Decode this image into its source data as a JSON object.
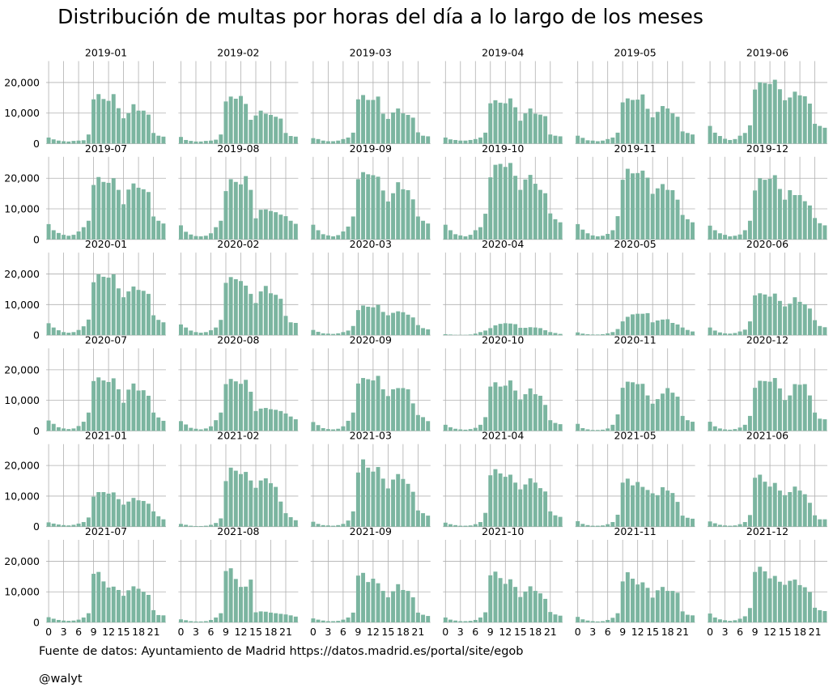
{
  "title": "Distribución de multas por horas del día a lo largo de los meses",
  "source_note": "Fuente de datos: Ayuntamiento de Madrid https://datos.madrid.es/portal/site/egob",
  "author_note": "@walyt",
  "colors": {
    "bar": "#7bb5a0",
    "grid": "#b0b0b0"
  },
  "chart_data": {
    "type": "bar",
    "layout": "small-multiples",
    "grid": true,
    "x": [
      0,
      1,
      2,
      3,
      4,
      5,
      6,
      7,
      8,
      9,
      10,
      11,
      12,
      13,
      14,
      15,
      16,
      17,
      18,
      19,
      20,
      21,
      22,
      23
    ],
    "xticks": [
      0,
      3,
      6,
      9,
      12,
      15,
      18,
      21
    ],
    "ylim": [
      0,
      27000
    ],
    "yticks": [
      0,
      10000,
      20000
    ],
    "ytick_labels": [
      "0",
      "10,000",
      "20,000"
    ],
    "panels": [
      {
        "title": "2019-01",
        "values": [
          2000,
          1400,
          1000,
          800,
          700,
          900,
          1000,
          1100,
          3000,
          14500,
          16200,
          14600,
          14000,
          16200,
          11600,
          8300,
          10000,
          12900,
          10800,
          10800,
          9500,
          3500,
          2600,
          2300
        ]
      },
      {
        "title": "2019-02",
        "values": [
          2200,
          1200,
          900,
          700,
          700,
          900,
          1000,
          1300,
          3000,
          13800,
          15400,
          14700,
          15600,
          13000,
          7800,
          9200,
          10800,
          9800,
          9400,
          8800,
          8200,
          3500,
          2500,
          2300
        ]
      },
      {
        "title": "2019-03",
        "values": [
          1800,
          1500,
          1000,
          800,
          800,
          1000,
          1500,
          2000,
          3600,
          14500,
          15900,
          14300,
          14300,
          15400,
          9800,
          8100,
          10200,
          11500,
          9900,
          9400,
          8500,
          3700,
          2600,
          2400
        ]
      },
      {
        "title": "2019-04",
        "values": [
          2000,
          1400,
          1200,
          1000,
          1000,
          1200,
          1500,
          2000,
          3600,
          13200,
          14200,
          13400,
          13200,
          14800,
          11900,
          7500,
          9900,
          11500,
          9800,
          9500,
          9000,
          3000,
          2600,
          2400
        ]
      },
      {
        "title": "2019-05",
        "values": [
          2600,
          1900,
          1100,
          1000,
          800,
          1000,
          1500,
          2000,
          3600,
          13500,
          14800,
          14300,
          14400,
          16100,
          11400,
          8600,
          10400,
          12300,
          11500,
          9900,
          8800,
          4000,
          3500,
          3000
        ]
      },
      {
        "title": "2019-06",
        "values": [
          5800,
          3600,
          2500,
          1600,
          1200,
          1500,
          2600,
          3500,
          6000,
          17700,
          20100,
          19800,
          19500,
          20900,
          17800,
          14200,
          15100,
          17000,
          15800,
          15500,
          13100,
          6500,
          5800,
          5200
        ]
      },
      {
        "title": "2019-07",
        "values": [
          5000,
          3000,
          2100,
          1500,
          1200,
          1500,
          2600,
          4000,
          6100,
          17800,
          20400,
          18800,
          18500,
          20000,
          16200,
          11500,
          16300,
          18300,
          16900,
          16400,
          15500,
          7500,
          6100,
          5200
        ]
      },
      {
        "title": "2019-08",
        "values": [
          4600,
          2500,
          1600,
          1100,
          1000,
          1200,
          2000,
          4000,
          6100,
          15800,
          19700,
          18800,
          18000,
          20700,
          16200,
          6900,
          9700,
          9800,
          9300,
          8900,
          8100,
          7600,
          6100,
          5100
        ]
      },
      {
        "title": "2019-09",
        "values": [
          4800,
          3000,
          1700,
          1300,
          1000,
          1400,
          2600,
          4200,
          7500,
          19700,
          22000,
          21300,
          21000,
          20500,
          16000,
          12400,
          15100,
          18700,
          16400,
          16100,
          13100,
          7500,
          6100,
          5200
        ]
      },
      {
        "title": "2019-10",
        "values": [
          4800,
          3000,
          1700,
          1300,
          1000,
          1500,
          3000,
          4000,
          8400,
          20300,
          24400,
          24700,
          23700,
          25000,
          20800,
          16200,
          19600,
          21100,
          18200,
          16200,
          15100,
          8500,
          6600,
          5600
        ]
      },
      {
        "title": "2019-11",
        "values": [
          5000,
          3200,
          2000,
          1300,
          1000,
          1200,
          1800,
          3000,
          7600,
          19500,
          23100,
          21600,
          21700,
          22500,
          20200,
          14900,
          16700,
          18100,
          16200,
          16100,
          13000,
          8000,
          6600,
          5600
        ]
      },
      {
        "title": "2019-12",
        "values": [
          4500,
          3000,
          2000,
          1500,
          1000,
          1200,
          1600,
          3000,
          6100,
          16000,
          20000,
          19500,
          19800,
          21000,
          16500,
          13000,
          16100,
          14500,
          14500,
          12500,
          11100,
          7000,
          5300,
          4600
        ]
      },
      {
        "title": "2020-01",
        "values": [
          3900,
          2500,
          1600,
          1000,
          800,
          1000,
          1700,
          2900,
          5100,
          17300,
          19900,
          19100,
          18800,
          19900,
          15300,
          12400,
          14300,
          15900,
          14800,
          14500,
          13500,
          6500,
          5000,
          4200
        ]
      },
      {
        "title": "2020-02",
        "values": [
          3500,
          2500,
          1500,
          1000,
          800,
          1000,
          1600,
          2500,
          5000,
          17100,
          19000,
          18300,
          17700,
          16200,
          13500,
          10500,
          14300,
          16100,
          13700,
          13200,
          11900,
          6300,
          4200,
          4000
        ]
      },
      {
        "title": "2020-03",
        "values": [
          1700,
          1100,
          600,
          500,
          400,
          600,
          1000,
          1500,
          3000,
          8200,
          9700,
          9300,
          9100,
          9900,
          7600,
          6500,
          7300,
          7800,
          7500,
          6700,
          5800,
          3300,
          2300,
          1900
        ]
      },
      {
        "title": "2020-04",
        "values": [
          300,
          200,
          100,
          100,
          100,
          200,
          500,
          1000,
          1500,
          2300,
          3200,
          3700,
          3900,
          3800,
          3600,
          2400,
          2400,
          2600,
          2500,
          2300,
          1600,
          1000,
          700,
          400
        ]
      },
      {
        "title": "2020-05",
        "values": [
          900,
          500,
          300,
          200,
          200,
          300,
          600,
          1000,
          2000,
          4500,
          6000,
          6800,
          7000,
          7000,
          7200,
          4200,
          4800,
          5100,
          5200,
          4000,
          3500,
          2500,
          1700,
          1200
        ]
      },
      {
        "title": "2020-06",
        "values": [
          2500,
          1500,
          900,
          600,
          500,
          700,
          1200,
          1800,
          4500,
          13000,
          13700,
          13300,
          12600,
          13600,
          11200,
          9400,
          10300,
          12400,
          10900,
          10100,
          8700,
          4900,
          3000,
          2600
        ]
      },
      {
        "title": "2020-07",
        "values": [
          3400,
          2300,
          1200,
          800,
          600,
          800,
          1600,
          3000,
          6000,
          16300,
          17500,
          16500,
          16000,
          17200,
          13600,
          9200,
          13500,
          15500,
          13200,
          13300,
          11500,
          6000,
          4400,
          3300
        ]
      },
      {
        "title": "2020-08",
        "values": [
          3200,
          2100,
          1000,
          700,
          500,
          800,
          1500,
          3500,
          6000,
          15300,
          17000,
          16200,
          15400,
          16700,
          12800,
          6500,
          7300,
          7500,
          7100,
          6900,
          6500,
          5700,
          4700,
          3800
        ]
      },
      {
        "title": "2020-09",
        "values": [
          2900,
          1900,
          900,
          600,
          500,
          700,
          1500,
          3300,
          6000,
          15500,
          17300,
          16900,
          16500,
          18000,
          13600,
          11400,
          13600,
          14000,
          14000,
          13600,
          9000,
          5200,
          4500,
          3200
        ]
      },
      {
        "title": "2020-10",
        "values": [
          2000,
          1200,
          700,
          500,
          400,
          600,
          1000,
          2000,
          4500,
          14500,
          15900,
          14500,
          14800,
          16500,
          13200,
          10300,
          12000,
          13900,
          12000,
          11500,
          8500,
          3500,
          2600,
          2200
        ]
      },
      {
        "title": "2020-11",
        "values": [
          2300,
          900,
          500,
          300,
          300,
          400,
          800,
          2000,
          5400,
          14100,
          16100,
          15900,
          15300,
          15400,
          11600,
          8900,
          10400,
          12200,
          14000,
          12500,
          11200,
          4900,
          3500,
          3000
        ]
      },
      {
        "title": "2020-12",
        "values": [
          3000,
          1500,
          800,
          500,
          400,
          600,
          1100,
          2000,
          4900,
          14100,
          16400,
          16300,
          16100,
          17300,
          13900,
          10100,
          11600,
          15300,
          15100,
          15300,
          11600,
          6000,
          4000,
          3800
        ]
      },
      {
        "title": "2021-01",
        "values": [
          1400,
          1000,
          700,
          500,
          400,
          600,
          1000,
          1500,
          3000,
          9800,
          11300,
          11300,
          10800,
          11200,
          9000,
          7200,
          8200,
          9400,
          8600,
          8400,
          7500,
          5000,
          3400,
          2400
        ]
      },
      {
        "title": "2021-02",
        "values": [
          900,
          600,
          300,
          200,
          200,
          300,
          600,
          1200,
          2700,
          14900,
          19300,
          18300,
          17200,
          17900,
          15100,
          12700,
          15100,
          15800,
          14200,
          13000,
          8200,
          4400,
          3100,
          2100
        ]
      },
      {
        "title": "2021-03",
        "values": [
          1600,
          900,
          500,
          400,
          300,
          500,
          900,
          2000,
          5000,
          17700,
          22000,
          19300,
          18000,
          19500,
          15700,
          12500,
          15400,
          17200,
          15600,
          14000,
          11400,
          5300,
          4400,
          3600
        ]
      },
      {
        "title": "2021-04",
        "values": [
          1300,
          800,
          500,
          300,
          300,
          400,
          800,
          1500,
          4500,
          16800,
          18800,
          17400,
          16300,
          17000,
          14400,
          12200,
          13800,
          15800,
          14400,
          12600,
          11500,
          5000,
          3700,
          3200
        ]
      },
      {
        "title": "2021-05",
        "values": [
          1800,
          900,
          500,
          300,
          300,
          400,
          800,
          1500,
          3900,
          14400,
          15700,
          13500,
          14600,
          13000,
          12000,
          10900,
          10300,
          12900,
          11800,
          11000,
          8100,
          3600,
          2900,
          2600
        ]
      },
      {
        "title": "2021-06",
        "values": [
          1700,
          1100,
          600,
          400,
          300,
          400,
          800,
          1500,
          3800,
          16000,
          17000,
          14700,
          13100,
          14300,
          11800,
          10300,
          11300,
          13100,
          11800,
          10600,
          7800,
          3700,
          2400,
          2400
        ]
      },
      {
        "title": "2021-07",
        "values": [
          1700,
          1200,
          800,
          600,
          500,
          600,
          900,
          1600,
          3000,
          15900,
          16500,
          13400,
          11400,
          11700,
          10600,
          8700,
          10500,
          11800,
          11000,
          10000,
          9000,
          4000,
          2400,
          2300
        ]
      },
      {
        "title": "2021-08",
        "values": [
          1000,
          700,
          400,
          300,
          300,
          400,
          800,
          1600,
          3000,
          16800,
          17700,
          14200,
          11600,
          11700,
          14000,
          3300,
          3600,
          3500,
          3200,
          3000,
          2800,
          2600,
          2300,
          1900
        ]
      },
      {
        "title": "2021-09",
        "values": [
          1300,
          900,
          600,
          400,
          400,
          500,
          900,
          1600,
          3200,
          15300,
          16200,
          13200,
          14300,
          12800,
          10300,
          8200,
          10200,
          12500,
          10600,
          10300,
          8200,
          3200,
          2500,
          2100
        ]
      },
      {
        "title": "2021-10",
        "values": [
          1600,
          900,
          600,
          400,
          400,
          500,
          800,
          1600,
          3300,
          15400,
          16600,
          14500,
          12600,
          14100,
          11600,
          8300,
          10100,
          11800,
          10300,
          9500,
          7700,
          3400,
          2600,
          2200
        ]
      },
      {
        "title": "2021-11",
        "values": [
          1800,
          1000,
          600,
          400,
          300,
          400,
          800,
          1500,
          3000,
          13400,
          16400,
          14300,
          12400,
          13100,
          11300,
          8100,
          10500,
          11600,
          10300,
          10300,
          9700,
          3600,
          2500,
          2300
        ]
      },
      {
        "title": "2021-12",
        "values": [
          2900,
          1600,
          1000,
          700,
          500,
          700,
          1200,
          2000,
          4700,
          16500,
          18200,
          16700,
          14400,
          15200,
          13300,
          12300,
          13600,
          14000,
          12200,
          11500,
          9900,
          4800,
          4000,
          3700
        ]
      }
    ]
  }
}
